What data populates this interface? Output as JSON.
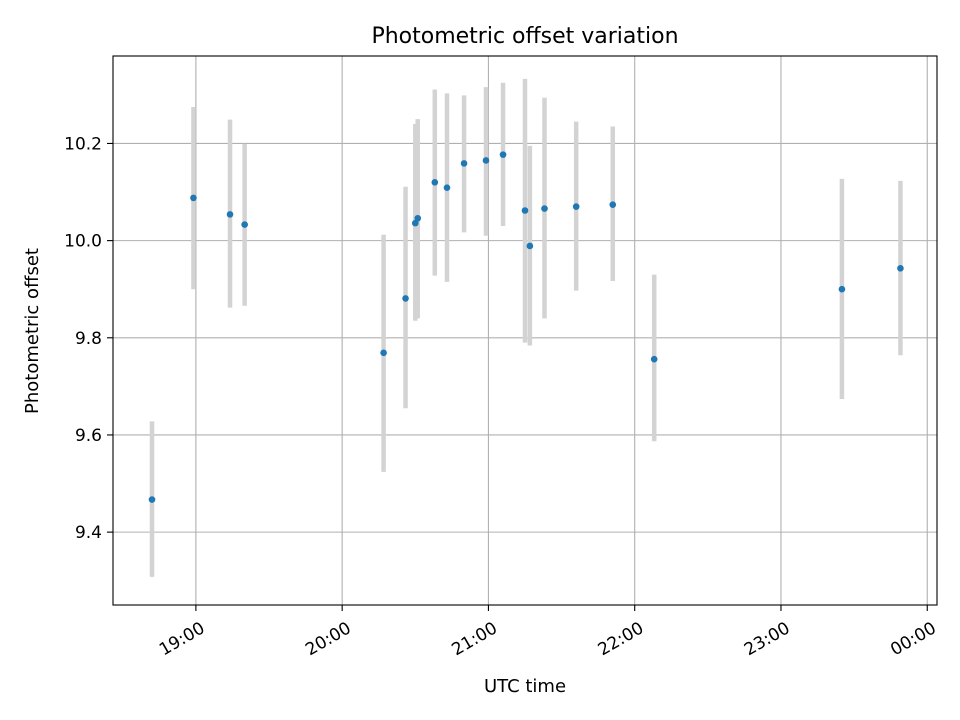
{
  "chart_data": {
    "type": "scatter",
    "title": "Photometric offset variation",
    "xlabel": "UTC time",
    "ylabel": "Photometric offset",
    "grid": true,
    "xlim": [
      "18:26",
      "00:04"
    ],
    "ylim": [
      9.25,
      10.38
    ],
    "xticks": [
      "19:00",
      "20:00",
      "21:00",
      "22:00",
      "23:00",
      "00:00"
    ],
    "yticks": [
      9.4,
      9.6,
      9.8,
      10.0,
      10.2
    ],
    "series": [
      {
        "marker_color": "#1f77b4",
        "errorbar_color": "#d3d3d3",
        "points": [
          {
            "t": "18:42",
            "y": 9.467,
            "lo": 9.308,
            "hi": 9.628
          },
          {
            "t": "18:59",
            "y": 10.088,
            "lo": 9.9,
            "hi": 10.275
          },
          {
            "t": "19:14",
            "y": 10.054,
            "lo": 9.862,
            "hi": 10.249
          },
          {
            "t": "19:20",
            "y": 10.033,
            "lo": 9.866,
            "hi": 10.199
          },
          {
            "t": "20:17",
            "y": 9.769,
            "lo": 9.524,
            "hi": 10.012
          },
          {
            "t": "20:26",
            "y": 9.881,
            "lo": 9.655,
            "hi": 10.111
          },
          {
            "t": "20:30",
            "y": 10.036,
            "lo": 9.835,
            "hi": 10.24
          },
          {
            "t": "20:31",
            "y": 10.046,
            "lo": 9.84,
            "hi": 10.25
          },
          {
            "t": "20:38",
            "y": 10.12,
            "lo": 9.928,
            "hi": 10.311
          },
          {
            "t": "20:43",
            "y": 10.109,
            "lo": 9.915,
            "hi": 10.303
          },
          {
            "t": "20:50",
            "y": 10.159,
            "lo": 10.017,
            "hi": 10.299
          },
          {
            "t": "20:59",
            "y": 10.165,
            "lo": 10.01,
            "hi": 10.316
          },
          {
            "t": "21:06",
            "y": 10.177,
            "lo": 10.03,
            "hi": 10.325
          },
          {
            "t": "21:15",
            "y": 10.062,
            "lo": 9.79,
            "hi": 10.333
          },
          {
            "t": "21:17",
            "y": 9.989,
            "lo": 9.784,
            "hi": 10.195
          },
          {
            "t": "21:23",
            "y": 10.066,
            "lo": 9.84,
            "hi": 10.294
          },
          {
            "t": "21:36",
            "y": 10.07,
            "lo": 9.897,
            "hi": 10.245
          },
          {
            "t": "21:51",
            "y": 10.074,
            "lo": 9.917,
            "hi": 10.235
          },
          {
            "t": "22:08",
            "y": 9.756,
            "lo": 9.587,
            "hi": 9.93
          },
          {
            "t": "23:25",
            "y": 9.9,
            "lo": 9.674,
            "hi": 10.127
          },
          {
            "t": "23:49",
            "y": 9.943,
            "lo": 9.764,
            "hi": 10.123
          }
        ]
      }
    ]
  }
}
